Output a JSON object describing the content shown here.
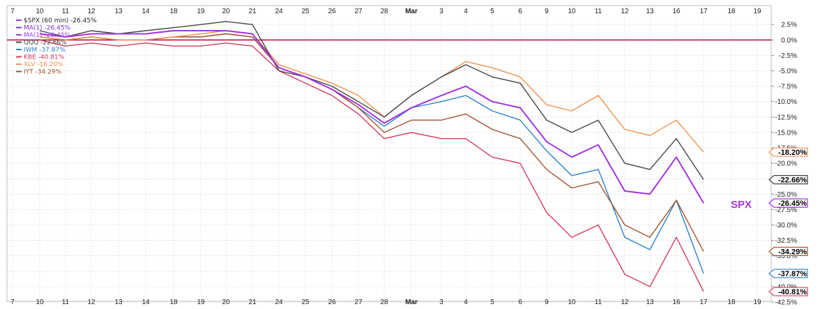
{
  "chart_data": {
    "type": "line",
    "x": [
      "10",
      "11",
      "12",
      "13",
      "14",
      "18",
      "19",
      "20",
      "21",
      "24",
      "25",
      "26",
      "27",
      "28",
      "Mar",
      "3",
      "4",
      "5",
      "6",
      "9",
      "10",
      "11",
      "12",
      "13",
      "16",
      "17"
    ],
    "x_top_ticks": [
      "7",
      "10",
      "11",
      "12",
      "13",
      "14",
      "18",
      "19",
      "20",
      "21",
      "24",
      "25",
      "26",
      "27",
      "28",
      "Mar",
      "3",
      "4",
      "5",
      "6",
      "9",
      "10",
      "11",
      "12",
      "13",
      "16",
      "17",
      "18",
      "19"
    ],
    "x_bottom_ticks": [
      "7",
      "10",
      "11",
      "12",
      "13",
      "14",
      "18",
      "19",
      "20",
      "21",
      "24",
      "25",
      "26",
      "27",
      "28",
      "Mar",
      "3",
      "4",
      "5",
      "6",
      "9",
      "10",
      "11",
      "12",
      "13",
      "16",
      "17",
      "18",
      "19"
    ],
    "y_ticks": [
      "2.5%",
      "0.0%",
      "-2.5%",
      "-5.0%",
      "-7.5%",
      "-10.0%",
      "-12.5%",
      "-15.0%",
      "-17.5%",
      "-20.0%",
      "-22.5%",
      "-25.0%",
      "-27.5%",
      "-30.0%",
      "-32.5%",
      "-35.0%",
      "-37.5%",
      "-40.0%",
      "-42.5%"
    ],
    "ylim": [
      -44,
      5
    ],
    "y_unit": "%",
    "grid": true,
    "legend_position": "top-left",
    "zero_line_color": "#c8103e",
    "annotation": {
      "text": "SPX",
      "color": "#a335e0"
    },
    "series": [
      {
        "name": "QQQ",
        "legend": "QQQ -22.66%",
        "end_label": "-22.66%",
        "color": "#444444",
        "values": [
          1.5,
          0.5,
          1.5,
          1,
          1.5,
          2,
          2.5,
          3,
          2.5,
          -5,
          -6,
          -7.5,
          -10,
          -12.5,
          -9,
          -6,
          -4,
          -6,
          -7,
          -13,
          -15,
          -13,
          -20,
          -21,
          -16,
          -22.66
        ]
      },
      {
        "name": "$SPX (60 min)",
        "legend": "$SPX (60 min) -26.45%",
        "end_label": "-26.45%",
        "color": "#a335e0",
        "values": [
          1,
          0.5,
          1,
          1,
          1,
          1.5,
          1.5,
          1.5,
          1,
          -4.5,
          -6,
          -8,
          -10.5,
          -13.5,
          -11,
          -9,
          -7.5,
          -10,
          -11,
          -16.5,
          -19,
          -17,
          -24.5,
          -25,
          -19,
          -26.45
        ]
      },
      {
        "name": "MA(1)",
        "legend": "MA(1) -26.45%",
        "color": "#7f2fd0",
        "values": [
          1,
          0.5,
          1,
          1,
          1,
          1.5,
          1.5,
          1.5,
          1,
          -4.5,
          -6,
          -8,
          -10.5,
          -13.5,
          -11,
          -9,
          -7.5,
          -10,
          -11,
          -16.5,
          -19,
          -17,
          -24.5,
          -25,
          -19,
          -26.45
        ]
      },
      {
        "name": "MA(1)",
        "legend": "MA(1) -26.45%",
        "color": "#9a40e8",
        "values": [
          1,
          0.5,
          1,
          1,
          1,
          1.5,
          1.5,
          1.5,
          1,
          -4.5,
          -6,
          -8,
          -10.5,
          -13.5,
          -11,
          -9,
          -7.5,
          -10,
          -11,
          -16.5,
          -19,
          -17,
          -24.5,
          -25,
          -19,
          -26.45
        ]
      },
      {
        "name": "IWM",
        "legend": "IWM -37.87%",
        "end_label": "-37.87%",
        "color": "#2a7fd0",
        "values": [
          0.5,
          0,
          0.5,
          0,
          0,
          0.5,
          0.5,
          1,
          0.5,
          -4.5,
          -6,
          -8,
          -11,
          -14,
          -11,
          -10,
          -9,
          -11.5,
          -13,
          -18,
          -22,
          -21,
          -32,
          -34,
          -26,
          -37.87
        ]
      },
      {
        "name": "KBE",
        "legend": "KBE -40.81%",
        "end_label": "-40.81%",
        "color": "#d63a5c",
        "values": [
          0,
          -1,
          -0.5,
          -1,
          -0.5,
          -1,
          -1,
          -0.5,
          -1,
          -5,
          -7,
          -9,
          -12,
          -16,
          -15,
          -16,
          -16,
          -19,
          -20,
          -28,
          -32,
          -30,
          -38,
          -40,
          -32,
          -40.81
        ]
      },
      {
        "name": "XLV",
        "legend": "XLV -18.20%",
        "end_label": "-18.20%",
        "color": "#f0904a",
        "values": [
          0.5,
          0,
          0.5,
          0,
          0,
          0.5,
          1,
          1.5,
          1,
          -4,
          -5.5,
          -7,
          -9,
          -12.5,
          -9,
          -6,
          -3.5,
          -4.5,
          -6,
          -10.5,
          -11.5,
          -9,
          -14.5,
          -15.5,
          -13,
          -18.2
        ]
      },
      {
        "name": "IYT",
        "legend": "IYT -34.29%",
        "end_label": "-34.29%",
        "color": "#a0522d",
        "values": [
          0.5,
          0,
          0.5,
          0,
          0,
          0.5,
          0.5,
          1,
          0.5,
          -4.5,
          -6,
          -8,
          -11,
          -15,
          -13,
          -13,
          -12,
          -14.5,
          -16,
          -21,
          -24,
          -23,
          -30,
          -32,
          -26,
          -34.29
        ]
      }
    ]
  }
}
